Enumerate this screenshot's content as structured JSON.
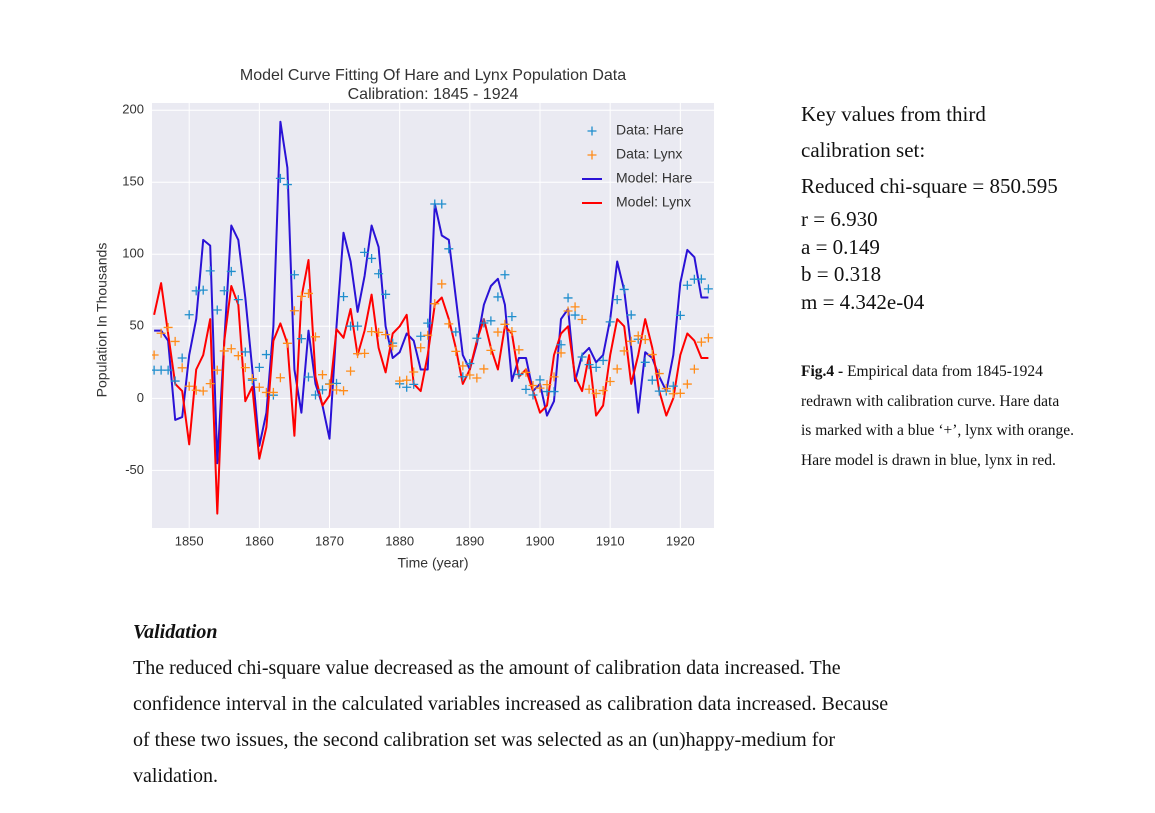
{
  "chart_data": {
    "type": "line",
    "title": [
      "Model Curve Fitting Of Hare and Lynx Population Data",
      "Calibration: 1845 - 1924"
    ],
    "xlabel": "Time (year)",
    "ylabel": "Population In Thousands",
    "x": [
      1845,
      1846,
      1847,
      1848,
      1849,
      1850,
      1851,
      1852,
      1853,
      1854,
      1855,
      1856,
      1857,
      1858,
      1859,
      1860,
      1861,
      1862,
      1863,
      1864,
      1865,
      1866,
      1867,
      1868,
      1869,
      1870,
      1871,
      1872,
      1873,
      1874,
      1875,
      1876,
      1877,
      1878,
      1879,
      1880,
      1881,
      1882,
      1883,
      1884,
      1885,
      1886,
      1887,
      1888,
      1889,
      1890,
      1891,
      1892,
      1893,
      1894,
      1895,
      1896,
      1897,
      1898,
      1899,
      1900,
      1901,
      1902,
      1903,
      1904,
      1905,
      1906,
      1907,
      1908,
      1909,
      1910,
      1911,
      1912,
      1913,
      1914,
      1915,
      1916,
      1917,
      1918,
      1919,
      1920,
      1921,
      1922,
      1923,
      1924
    ],
    "series": [
      {
        "name": "Data: Hare",
        "color": "#1f8ecd",
        "mode": "markers",
        "values": [
          19.6,
          19.6,
          19.6,
          12,
          28,
          58,
          74.6,
          75.1,
          88.5,
          61.3,
          74.7,
          88.1,
          68.5,
          32.2,
          12.6,
          21.5,
          30.4,
          2.2,
          152.7,
          148.4,
          85.8,
          41.4,
          14.8,
          2.3,
          5.9,
          10,
          10.4,
          70.6,
          50.1,
          50.1,
          101.3,
          97.1,
          86.5,
          72.2,
          38.3,
          10.1,
          7.7,
          9.7,
          43.1,
          52.2,
          134.9,
          134.9,
          103.8,
          46.1,
          15,
          24.2,
          41.7,
          52.3,
          53.8,
          70.4,
          85.8,
          56.7,
          16.6,
          6.2,
          2.3,
          12.8,
          4.7,
          4.7,
          37.2,
          69.7,
          57.8,
          28.7,
          23.4,
          21.5,
          26.3,
          53.1,
          68.5,
          75.6,
          57.9,
          41,
          25,
          12.6,
          5,
          5,
          8.5,
          57.6,
          78.5,
          82.7,
          82.8,
          76
        ]
      },
      {
        "name": "Data: Lynx",
        "color": "#ff8c1a",
        "mode": "markers",
        "values": [
          30.1,
          45.2,
          49.2,
          39.5,
          21.2,
          8.4,
          5.6,
          5.1,
          10.2,
          19.6,
          32.9,
          34.4,
          29.6,
          21.3,
          13.7,
          7.7,
          4.1,
          4.1,
          14.3,
          38.2,
          60.8,
          70.8,
          72.8,
          42.7,
          16.4,
          9.8,
          5.8,
          5.3,
          18.9,
          31,
          31.2,
          46.3,
          45.8,
          44.2,
          36.3,
          12,
          12.6,
          18.3,
          35.1,
          43.8,
          65.7,
          79.4,
          51.7,
          32.6,
          22.5,
          16.2,
          14.1,
          20.4,
          33.3,
          46,
          51.4,
          46.4,
          33.7,
          18,
          8.9,
          7.1,
          9.5,
          14.9,
          31.5,
          60.6,
          63.5,
          54.7,
          6.3,
          3.4,
          5.4,
          11.7,
          20.4,
          32.9,
          39.6,
          43.4,
          40.8,
          30.4,
          17.2,
          6.8,
          3.2,
          3.5,
          9.9,
          20.3,
          39,
          42
        ]
      },
      {
        "name": "Model: Hare",
        "color": "#2a12d6",
        "mode": "lines",
        "values": [
          47,
          47,
          40,
          -15,
          -13,
          30,
          55,
          110,
          106,
          -45,
          40,
          120,
          110,
          70,
          20,
          -33,
          -10,
          50,
          192,
          160,
          20,
          -10,
          47,
          10,
          -5,
          -28,
          50,
          115,
          95,
          60,
          85,
          120,
          105,
          50,
          28,
          32,
          45,
          40,
          20,
          20,
          135,
          113,
          110,
          70,
          30,
          20,
          38,
          65,
          78,
          83,
          65,
          12,
          28,
          28,
          5,
          10,
          -12,
          -2,
          55,
          62,
          12,
          30,
          35,
          25,
          30,
          55,
          95,
          75,
          35,
          -10,
          32,
          28,
          15,
          5,
          30,
          80,
          103,
          98,
          70,
          70
        ]
      },
      {
        "name": "Model: Lynx",
        "color": "#ff0000",
        "mode": "lines",
        "values": [
          58,
          80,
          45,
          10,
          5,
          -32,
          20,
          30,
          55,
          -80,
          40,
          78,
          65,
          -2,
          8,
          -42,
          -20,
          40,
          52,
          38,
          -26,
          70,
          96,
          15,
          -5,
          2,
          48,
          42,
          62,
          30,
          47,
          72,
          35,
          18,
          45,
          50,
          58,
          10,
          5,
          30,
          65,
          70,
          55,
          35,
          10,
          20,
          40,
          55,
          35,
          20,
          50,
          45,
          15,
          20,
          5,
          -10,
          -5,
          30,
          45,
          50,
          15,
          5,
          30,
          -12,
          -5,
          30,
          55,
          50,
          10,
          30,
          55,
          35,
          5,
          -12,
          0,
          30,
          45,
          40,
          28,
          28
        ]
      }
    ],
    "xlim": [
      1844.7,
      1924.8
    ],
    "ylim": [
      -90,
      205
    ],
    "xticks": [
      1850,
      1860,
      1870,
      1880,
      1890,
      1900,
      1910,
      1920
    ],
    "yticks": [
      -50,
      0,
      50,
      100,
      150,
      200
    ],
    "grid": true,
    "legend": "upper right"
  },
  "key_values": {
    "heading": "Key values from third calibration set:",
    "lines": [
      "Reduced chi-square = 850.595",
      "r = 6.930",
      "a = 0.149",
      "b = 0.318",
      "m = 4.342e-04"
    ]
  },
  "caption": {
    "label": "Fig.4 -",
    "lines": [
      "Empirical data from 1845-1924",
      "redrawn with calibration curve. Hare data",
      "is marked with a blue ‘+’, lynx with orange.",
      "Hare model is drawn in blue, lynx in red."
    ]
  },
  "validation": {
    "heading": "Validation",
    "lines": [
      "The reduced chi-square value decreased as the amount of calibration data increased. The",
      "confidence interval in the calculated variables increased as calibration data increased. Because",
      "of these two issues, the second calibration set was selected as an (un)happy-medium for",
      "validation."
    ]
  }
}
